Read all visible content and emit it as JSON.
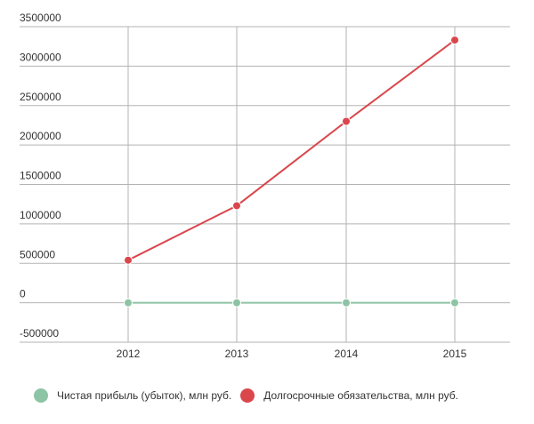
{
  "chart_data": {
    "type": "line",
    "categories": [
      "2012",
      "2013",
      "2014",
      "2015"
    ],
    "y_ticks": [
      "3500000",
      "3000000",
      "2500000",
      "2000000",
      "1500000",
      "1000000",
      "500000",
      "0",
      "-500000"
    ],
    "ylim": [
      -500000,
      3500000
    ],
    "grid": true,
    "legend_position": "bottom-left",
    "series": [
      {
        "name": "Чистая прибыль (убыток), млн руб.",
        "color": "#8dc4a5",
        "values": [
          0,
          0,
          0,
          0
        ]
      },
      {
        "name": "Долгосрочные обязательства, млн руб.",
        "color": "#d9474c",
        "values": [
          540000,
          1230000,
          2300000,
          3330000
        ]
      }
    ]
  }
}
